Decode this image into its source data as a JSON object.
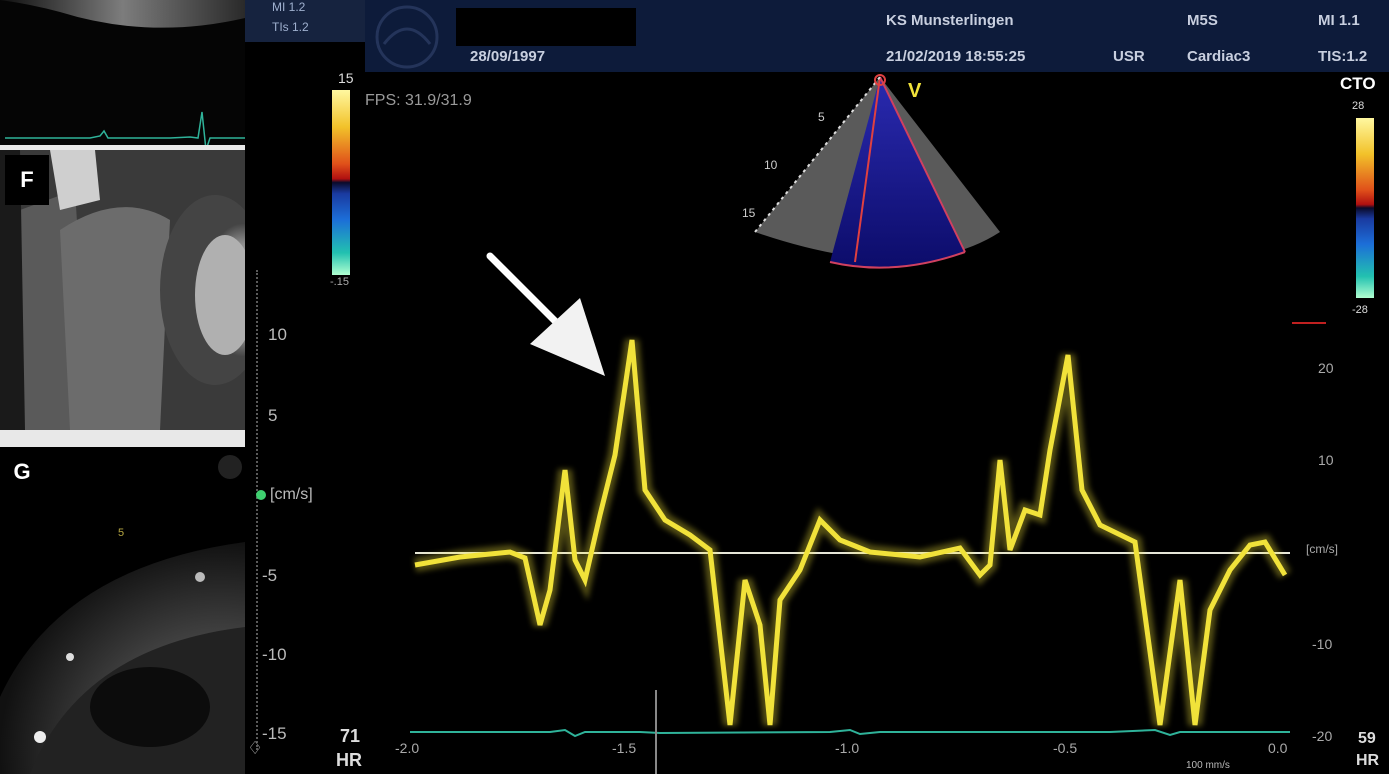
{
  "left_panels": {
    "top": {
      "mi": "MI 1.2",
      "tis": "TIs 1.2"
    },
    "f_label": "F",
    "g_label": "G",
    "g_depth": "5"
  },
  "header": {
    "patient_date": "28/09/1997",
    "institution": "KS Munsterlingen",
    "datetime": "21/02/2019 18:55:25",
    "user": "USR",
    "probe": "M5S",
    "preset": "Cardiac3",
    "mi": "MI 1.1",
    "tis": "TIS:1.2",
    "mode": "CTO"
  },
  "viewer": {
    "fps": "FPS: 31.9/31.9",
    "left_color_scale": {
      "top": "15",
      "bottom": "-.15"
    },
    "right_color_scale": {
      "top": "28",
      "bottom": "-28"
    },
    "sector_label": "V",
    "sector_depths": [
      "5",
      "10",
      "15"
    ],
    "unit_left": "[cm/s]",
    "unit_right": "[cm/s]",
    "left_axis_ticks": [
      "10",
      "5",
      "-5",
      "-10",
      "-15"
    ],
    "right_axis_ticks": [
      "20",
      "10",
      "-10",
      "-20"
    ],
    "time_ticks": [
      "-2.0",
      "-1.5",
      "-1.0",
      "-0.5",
      "0.0"
    ],
    "hr_left": {
      "value": "71",
      "label": "HR"
    },
    "hr_right": {
      "value": "59",
      "label": "HR"
    },
    "sweep": "100 mm/s",
    "colors": {
      "doppler": "#f1e23a",
      "ecg": "#2fb39a",
      "header": "#0d1b3a"
    }
  }
}
